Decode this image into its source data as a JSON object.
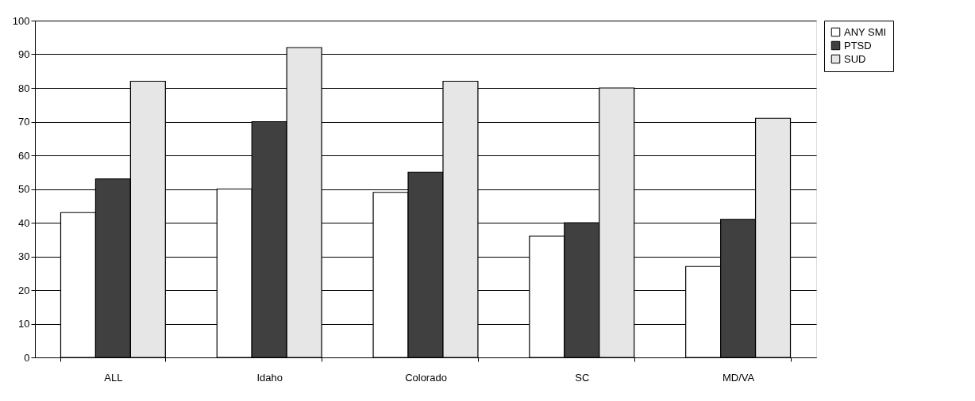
{
  "chart_data": {
    "type": "bar",
    "categories": [
      "ALL",
      "Idaho",
      "Colorado",
      "SC",
      "MD/VA"
    ],
    "series": [
      {
        "name": "ANY SMI",
        "color": "#ffffff",
        "values": [
          43,
          50,
          49,
          36,
          27
        ]
      },
      {
        "name": "PTSD",
        "color": "#404040",
        "values": [
          53,
          70,
          55,
          40,
          41
        ]
      },
      {
        "name": "SUD",
        "color": "#e6e6e6",
        "values": [
          82,
          92,
          82,
          80,
          71
        ]
      }
    ],
    "ylim": [
      0,
      100
    ],
    "yticks": [
      0,
      10,
      20,
      30,
      40,
      50,
      60,
      70,
      80,
      90,
      100
    ],
    "grid": "y",
    "legend": "right"
  }
}
